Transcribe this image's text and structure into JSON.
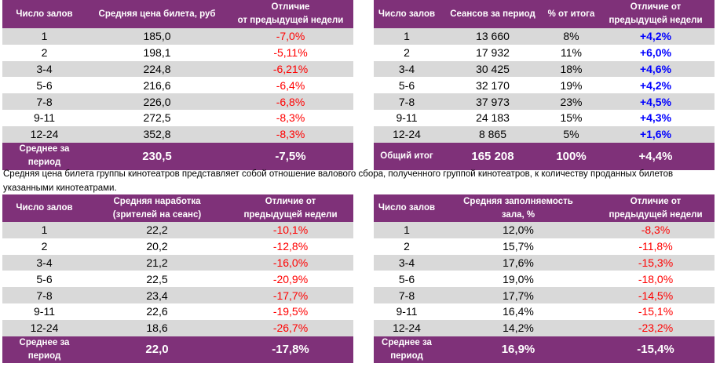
{
  "colors": {
    "header": "#7f3179",
    "stripe": "#d9d9d9",
    "negative": "#ff0000",
    "positive": "#0000ff"
  },
  "tables": [
    {
      "id": "avg-ticket-price",
      "headers": [
        "Число залов",
        "Средняя цена билета, руб",
        "Отличие\nот предыдущей недели"
      ],
      "rows": [
        [
          "1",
          "185,0",
          "-7,0%"
        ],
        [
          "2",
          "198,1",
          "-5,11%"
        ],
        [
          "3-4",
          "224,8",
          "-6,21%"
        ],
        [
          "5-6",
          "216,6",
          "-6,4%"
        ],
        [
          "7-8",
          "226,0",
          "-6,8%"
        ],
        [
          "9-11",
          "272,5",
          "-8,3%"
        ],
        [
          "12-24",
          "352,8",
          "-8,3%"
        ]
      ],
      "footer": [
        "Среднее за\nпериод",
        "230,5",
        "-7,5%"
      ]
    },
    {
      "id": "sessions",
      "headers": [
        "Число залов",
        "Сеансов за период",
        "% от итога",
        "Отличие от\nпредыдущей недели"
      ],
      "rows": [
        [
          "1",
          "13 660",
          "8%",
          "+4,2%"
        ],
        [
          "2",
          "17 932",
          "11%",
          "+6,0%"
        ],
        [
          "3-4",
          "30 425",
          "18%",
          "+4,6%"
        ],
        [
          "5-6",
          "32 170",
          "19%",
          "+4,2%"
        ],
        [
          "7-8",
          "37 973",
          "23%",
          "+4,5%"
        ],
        [
          "9-11",
          "24 183",
          "15%",
          "+4,3%"
        ],
        [
          "12-24",
          "8 865",
          "5%",
          "+1,6%"
        ]
      ],
      "footer": [
        "Общий итог",
        "165 208",
        "100%",
        "+4,4%"
      ]
    },
    {
      "id": "avg-attendance",
      "headers": [
        "Число залов",
        "Средняя наработка\n(зрителей на сеанс)",
        "Отличие от\nпредыдущей недели"
      ],
      "rows": [
        [
          "1",
          "22,2",
          "-10,1%"
        ],
        [
          "2",
          "20,2",
          "-12,8%"
        ],
        [
          "3-4",
          "21,2",
          "-16,0%"
        ],
        [
          "5-6",
          "22,5",
          "-20,9%"
        ],
        [
          "7-8",
          "23,4",
          "-17,7%"
        ],
        [
          "9-11",
          "22,6",
          "-19,5%"
        ],
        [
          "12-24",
          "18,6",
          "-26,7%"
        ]
      ],
      "footer": [
        "Среднее за\nпериод",
        "22,0",
        "-17,8%"
      ]
    },
    {
      "id": "avg-occupancy",
      "headers": [
        "Число залов",
        "Средняя заполняемость\nзала, %",
        "Отличие от\nпредыдущей недели"
      ],
      "rows": [
        [
          "1",
          "12,0%",
          "-8,3%"
        ],
        [
          "2",
          "15,7%",
          "-11,8%"
        ],
        [
          "3-4",
          "17,6%",
          "-15,3%"
        ],
        [
          "5-6",
          "19,0%",
          "-18,0%"
        ],
        [
          "7-8",
          "17,7%",
          "-14,5%"
        ],
        [
          "9-11",
          "16,4%",
          "-15,1%"
        ],
        [
          "12-24",
          "14,2%",
          "-23,2%"
        ]
      ],
      "footer": [
        "Среднее за\nпериод",
        "16,9%",
        "-15,4%"
      ]
    }
  ],
  "caption": "Средняя цена билета группы кинотеатров представляет собой отношение валового сбора, полученного группой кинотеатров, к количеству проданных билетов указанными кинотеатрами."
}
